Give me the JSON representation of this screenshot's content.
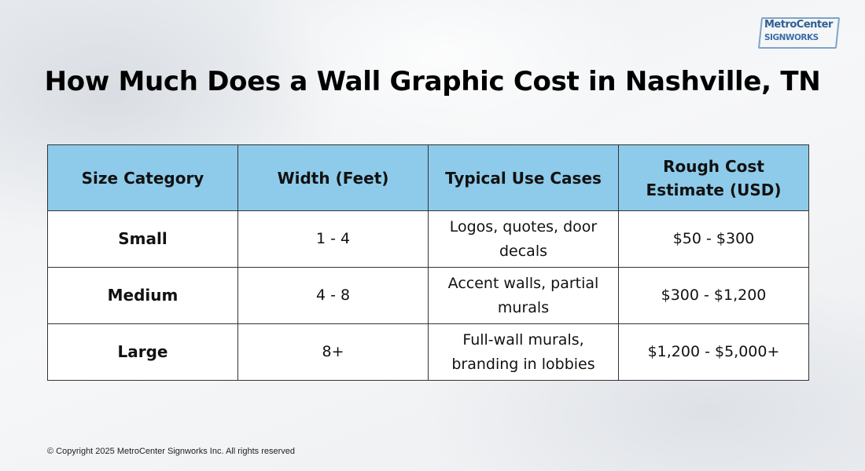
{
  "logo": {
    "line1": "MetroCenter",
    "line2": "SIGNWORKS"
  },
  "title": "How Much Does a Wall Graphic Cost in Nashville, TN",
  "table": {
    "headers": [
      "Size Category",
      "Width (Feet)",
      "Typical Use Cases",
      "Rough Cost Estimate (USD)"
    ],
    "rows": [
      {
        "size": "Small",
        "width": "1 - 4",
        "use": "Logos, quotes, door decals",
        "cost": "$50 - $300"
      },
      {
        "size": "Medium",
        "width": "4 - 8",
        "use": "Accent walls, partial murals",
        "cost": "$300 - $1,200"
      },
      {
        "size": "Large",
        "width": "8+",
        "use": "Full-wall murals, branding in lobbies",
        "cost": "$1,200 - $5,000+"
      }
    ]
  },
  "footer": "© Copyright 2025 MetroCenter Signworks Inc. All rights reserved",
  "colors": {
    "header_bg": "#8ecbea",
    "title": "#000000",
    "logo": "#2e5f95"
  }
}
